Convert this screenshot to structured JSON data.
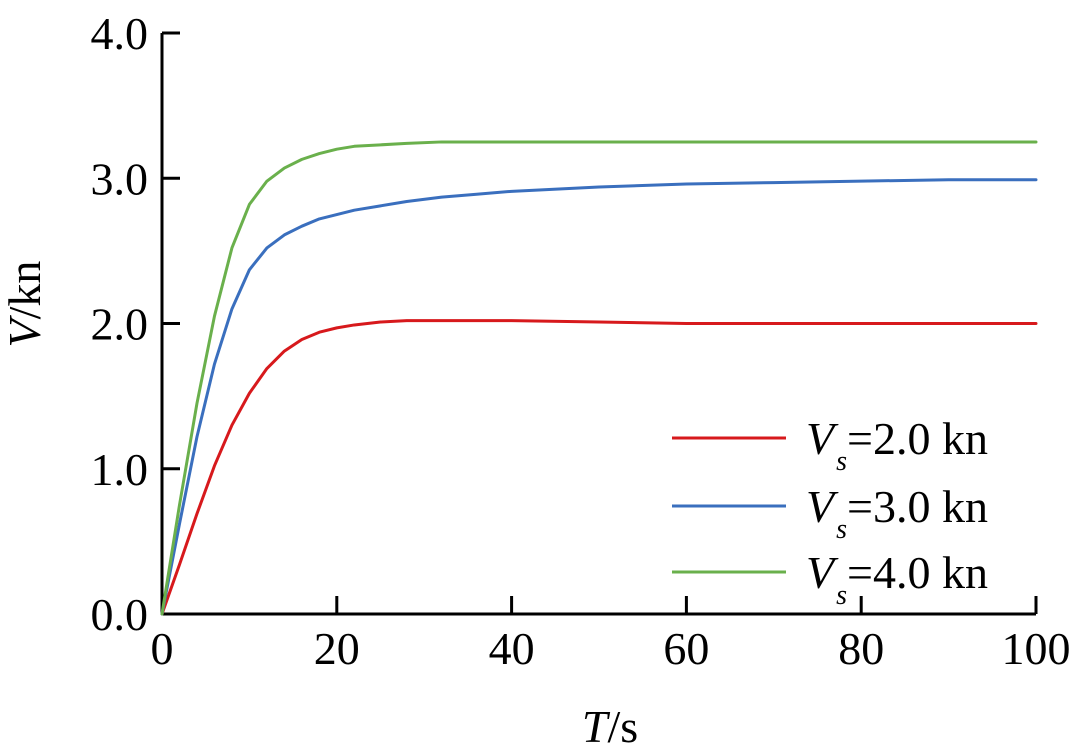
{
  "chart_data": {
    "type": "line",
    "title": "",
    "xlabel": {
      "var": "T",
      "unit": "/s"
    },
    "ylabel": {
      "var": "V",
      "unit": "/kn"
    },
    "xlim": [
      0,
      100
    ],
    "ylim": [
      0,
      4.0
    ],
    "xticks": [
      "0",
      "20",
      "40",
      "60",
      "80",
      "100"
    ],
    "yticks": [
      "0.0",
      "1.0",
      "2.0",
      "3.0",
      "4.0"
    ],
    "grid": false,
    "legend_position": "bottom-right",
    "series": [
      {
        "name": "2.0 kn",
        "legend_prefix": "V",
        "legend_sub": "s",
        "legend_suffix": "=2.0 kn",
        "color": "#d7191c",
        "x": [
          0,
          2,
          4,
          6,
          8,
          10,
          12,
          14,
          16,
          18,
          20,
          22,
          25,
          28,
          32,
          36,
          40,
          50,
          60,
          70,
          80,
          90,
          100
        ],
        "y": [
          0,
          0.34,
          0.69,
          1.02,
          1.3,
          1.52,
          1.69,
          1.81,
          1.89,
          1.94,
          1.97,
          1.99,
          2.01,
          2.02,
          2.02,
          2.02,
          2.02,
          2.01,
          2.0,
          2.0,
          2.0,
          2.0,
          2.0
        ]
      },
      {
        "name": "3.0 kn",
        "legend_prefix": "V",
        "legend_sub": "s",
        "legend_suffix": "=3.0 kn",
        "color": "#3a6fbe",
        "x": [
          0,
          2,
          4,
          6,
          8,
          10,
          12,
          14,
          16,
          18,
          20,
          22,
          25,
          28,
          32,
          36,
          40,
          50,
          60,
          70,
          80,
          90,
          100
        ],
        "y": [
          0,
          0.62,
          1.22,
          1.72,
          2.1,
          2.37,
          2.52,
          2.61,
          2.67,
          2.72,
          2.75,
          2.78,
          2.81,
          2.84,
          2.87,
          2.89,
          2.91,
          2.94,
          2.96,
          2.97,
          2.98,
          2.99,
          2.99
        ]
      },
      {
        "name": "4.0 kn",
        "legend_prefix": "V",
        "legend_sub": "s",
        "legend_suffix": "=4.0 kn",
        "color": "#6ab04c",
        "x": [
          0,
          2,
          4,
          6,
          8,
          10,
          12,
          14,
          16,
          18,
          20,
          22,
          25,
          28,
          32,
          36,
          40,
          50,
          60,
          70,
          80,
          90,
          100
        ],
        "y": [
          0,
          0.75,
          1.45,
          2.05,
          2.52,
          2.82,
          2.98,
          3.07,
          3.13,
          3.17,
          3.2,
          3.22,
          3.23,
          3.24,
          3.25,
          3.25,
          3.25,
          3.25,
          3.25,
          3.25,
          3.25,
          3.25,
          3.25
        ]
      }
    ]
  }
}
